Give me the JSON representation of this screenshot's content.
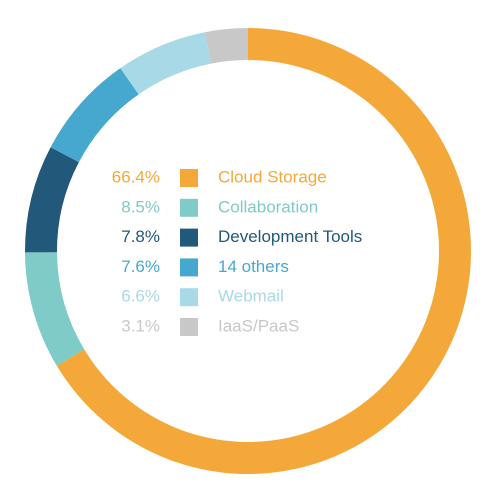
{
  "chart_data": {
    "type": "donut",
    "categories": [
      "Cloud Storage",
      "Collaboration",
      "Development Tools",
      "14 others",
      "Webmail",
      "IaaS/PaaS"
    ],
    "values": [
      66.4,
      8.5,
      7.8,
      7.6,
      6.6,
      3.1
    ],
    "value_labels": [
      "66.4%",
      "8.5%",
      "7.8%",
      "7.6%",
      "6.6%",
      "3.1%"
    ],
    "colors": [
      "#f4a83a",
      "#7ecbc8",
      "#22587a",
      "#47a8cf",
      "#a8d9e6",
      "#c8c8c8"
    ]
  }
}
